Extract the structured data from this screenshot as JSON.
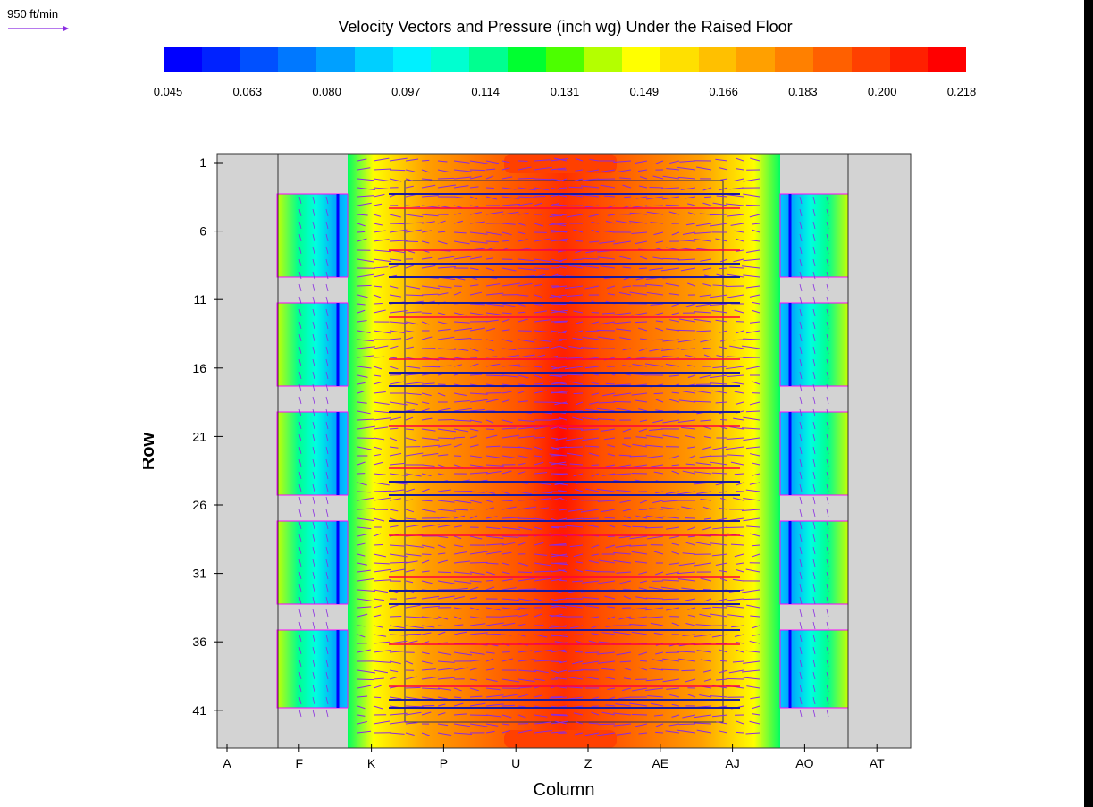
{
  "scale_reference": {
    "label": "950 ft/min",
    "arrow_color": "#8a2be2"
  },
  "chart_data": {
    "type": "heatmap",
    "title": "Velocity Vectors and Pressure (inch wg) Under the Raised Floor",
    "xlabel": "Column",
    "ylabel": "Row",
    "x_ticks": [
      "A",
      "F",
      "K",
      "P",
      "U",
      "Z",
      "AE",
      "AJ",
      "AO",
      "AT"
    ],
    "y_ticks": [
      "1",
      "6",
      "11",
      "16",
      "21",
      "26",
      "31",
      "36",
      "41"
    ],
    "colorbar": {
      "min": 0.045,
      "max": 0.218,
      "tick_labels": [
        "0.045",
        "0.063",
        "0.080",
        "0.097",
        "0.114",
        "0.131",
        "0.149",
        "0.166",
        "0.183",
        "0.200",
        "0.218"
      ],
      "colors": [
        "#0000ff",
        "#0022ff",
        "#0050ff",
        "#0078ff",
        "#00a0ff",
        "#00cfff",
        "#00f0ff",
        "#00ffd0",
        "#00ff90",
        "#00ff30",
        "#4cff00",
        "#b4ff00",
        "#ffff00",
        "#ffe000",
        "#ffc000",
        "#ffa000",
        "#ff8000",
        "#ff6000",
        "#ff4000",
        "#ff2000",
        "#ff0000"
      ]
    },
    "vector_color": "#8a2be2",
    "grid": false
  }
}
